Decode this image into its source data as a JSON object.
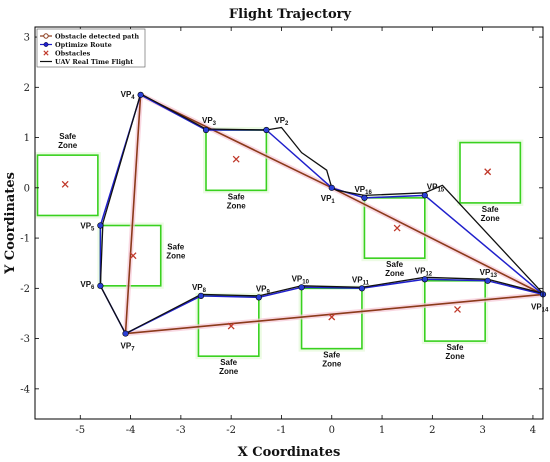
{
  "chart_data": {
    "type": "line",
    "title": "Flight Trajectory",
    "xlabel": "X Coordinates",
    "ylabel": "Y Coordinates",
    "xlim": [
      -5.9,
      4.2
    ],
    "ylim": [
      -4.6,
      3.2
    ],
    "xticks": [
      -5,
      -4,
      -3,
      -2,
      -1,
      0,
      1,
      2,
      3,
      4
    ],
    "yticks": [
      -4,
      -3,
      -2,
      -1,
      0,
      1,
      2,
      3
    ],
    "grid": false,
    "legend_position": "top-left",
    "legend": [
      {
        "label": "Obstacle detected path",
        "color": "#8B3A1A"
      },
      {
        "label": "Optimize Route",
        "color": "#2020CC"
      },
      {
        "label": "Obstacles",
        "color": "#C0392B"
      },
      {
        "label": "UAV Real Time Flight",
        "color": "#111111"
      }
    ],
    "waypoints": [
      {
        "label": "VP1",
        "x": 0.0,
        "y": 0.0
      },
      {
        "label": "VP2",
        "x": -1.3,
        "y": 1.15
      },
      {
        "label": "VP3",
        "x": -2.5,
        "y": 1.15
      },
      {
        "label": "VP4",
        "x": -3.8,
        "y": 1.85
      },
      {
        "label": "VP5",
        "x": -4.6,
        "y": -0.75
      },
      {
        "label": "VP6",
        "x": -4.6,
        "y": -1.95
      },
      {
        "label": "VP7",
        "x": -4.1,
        "y": -2.9
      },
      {
        "label": "VP8",
        "x": -2.6,
        "y": -2.15
      },
      {
        "label": "VP9",
        "x": -1.45,
        "y": -2.18
      },
      {
        "label": "VP10",
        "x": -0.6,
        "y": -1.98
      },
      {
        "label": "VP11",
        "x": 0.6,
        "y": -2.0
      },
      {
        "label": "VP12",
        "x": 1.85,
        "y": -1.82
      },
      {
        "label": "VP13",
        "x": 3.1,
        "y": -1.85
      },
      {
        "label": "VP14",
        "x": 4.2,
        "y": -2.12
      },
      {
        "label": "VP15",
        "x": 1.85,
        "y": -0.15
      },
      {
        "label": "VP16",
        "x": 0.65,
        "y": -0.2
      }
    ],
    "series": [
      {
        "name": "Obstacle detected path",
        "color": "#8B3A1A",
        "points": [
          [
            0.0,
            0.0
          ],
          [
            -3.8,
            1.85
          ],
          [
            -4.1,
            -2.9
          ],
          [
            4.2,
            -2.12
          ],
          [
            0.0,
            0.0
          ]
        ]
      },
      {
        "name": "Optimize Route",
        "color": "#2020CC",
        "points": [
          [
            0.0,
            0.0
          ],
          [
            -1.3,
            1.15
          ],
          [
            -2.5,
            1.15
          ],
          [
            -3.8,
            1.85
          ],
          [
            -4.6,
            -0.75
          ],
          [
            -4.6,
            -1.95
          ],
          [
            -4.1,
            -2.9
          ],
          [
            -2.6,
            -2.15
          ],
          [
            -1.45,
            -2.18
          ],
          [
            -0.6,
            -1.98
          ],
          [
            0.6,
            -2.0
          ],
          [
            1.85,
            -1.82
          ],
          [
            3.1,
            -1.85
          ],
          [
            4.2,
            -2.12
          ],
          [
            1.85,
            -0.15
          ],
          [
            0.65,
            -0.2
          ],
          [
            0.0,
            0.0
          ]
        ]
      },
      {
        "name": "UAV Real Time Flight",
        "color": "#111111",
        "points": [
          [
            0.0,
            0.0
          ],
          [
            -0.1,
            0.35
          ],
          [
            -0.6,
            0.7
          ],
          [
            -1.0,
            1.2
          ],
          [
            -1.3,
            1.15
          ],
          [
            -2.5,
            1.17
          ],
          [
            -3.8,
            1.87
          ],
          [
            -4.55,
            -0.7
          ],
          [
            -4.6,
            -1.95
          ],
          [
            -4.1,
            -2.9
          ],
          [
            -2.6,
            -2.12
          ],
          [
            -1.45,
            -2.15
          ],
          [
            -0.6,
            -1.95
          ],
          [
            0.6,
            -1.98
          ],
          [
            1.85,
            -1.78
          ],
          [
            3.1,
            -1.82
          ],
          [
            4.2,
            -2.1
          ],
          [
            2.2,
            0.05
          ],
          [
            1.85,
            -0.1
          ],
          [
            0.65,
            -0.15
          ],
          [
            0.1,
            -0.05
          ],
          [
            0.0,
            0.0
          ]
        ]
      }
    ],
    "obstacles": [
      {
        "x": -5.3,
        "y": 0.07
      },
      {
        "x": -1.9,
        "y": 0.57
      },
      {
        "x": 1.3,
        "y": -0.8
      },
      {
        "x": 3.1,
        "y": 0.32
      },
      {
        "x": -3.95,
        "y": -1.35
      },
      {
        "x": -2.0,
        "y": -2.75
      },
      {
        "x": 0.0,
        "y": -2.57
      },
      {
        "x": 2.5,
        "y": -2.42
      }
    ],
    "safe_zones": [
      {
        "x0": -5.85,
        "x1": -4.65,
        "y0": -0.55,
        "y1": 0.65,
        "text": "Safe\nZone",
        "label_pos": "above"
      },
      {
        "x0": -2.5,
        "x1": -1.3,
        "y0": -0.05,
        "y1": 1.15,
        "text": "Safe\nZone",
        "label_pos": "below"
      },
      {
        "x0": 0.65,
        "x1": 1.85,
        "y0": -1.4,
        "y1": -0.2,
        "text": "Safe\nZone",
        "label_pos": "below"
      },
      {
        "x0": 2.55,
        "x1": 3.75,
        "y0": -0.3,
        "y1": 0.9,
        "text": "Safe\nZone",
        "label_pos": "below"
      },
      {
        "x0": -4.6,
        "x1": -3.4,
        "y0": -1.95,
        "y1": -0.75,
        "text": "Safe\nZone",
        "label_pos": "right"
      },
      {
        "x0": -2.65,
        "x1": -1.45,
        "y0": -3.35,
        "y1": -2.15,
        "text": "Safe\nZone",
        "label_pos": "below"
      },
      {
        "x0": -0.6,
        "x1": 0.6,
        "y0": -3.2,
        "y1": -2.0,
        "text": "Safe\nZone",
        "label_pos": "below"
      },
      {
        "x0": 1.85,
        "x1": 3.05,
        "y0": -3.05,
        "y1": -1.85,
        "text": "Safe\nZone",
        "label_pos": "below"
      }
    ]
  }
}
